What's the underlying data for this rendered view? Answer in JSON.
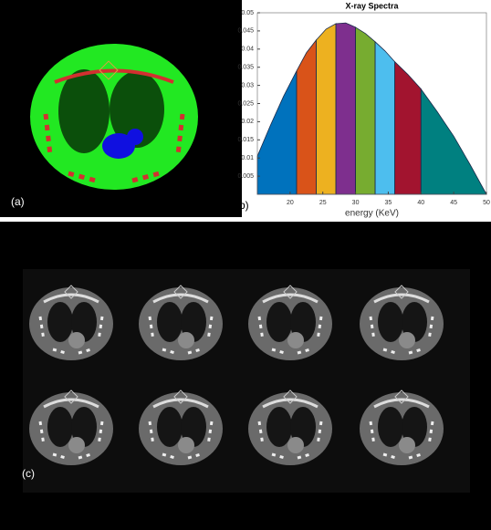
{
  "panels": {
    "a": "(a)",
    "b": "(b)",
    "c": "(c)"
  },
  "chart_data": {
    "type": "area",
    "title": "X-ray Spectra",
    "x_label": "energy (KeV)",
    "xlim": [
      15,
      50
    ],
    "xticks": [
      20,
      25,
      30,
      35,
      40,
      45,
      50
    ],
    "ylim": [
      0,
      0.05
    ],
    "yticks": [
      0.005,
      0.01,
      0.015,
      0.02,
      0.025,
      0.03,
      0.035,
      0.04,
      0.045,
      0.05
    ],
    "series": [
      {
        "color": "#0072bd",
        "x": [
          15,
          17,
          19,
          21
        ],
        "values": [
          0.0105,
          0.019,
          0.027,
          0.034
        ]
      },
      {
        "color": "#d95319",
        "x": [
          21,
          22.5,
          24
        ],
        "values": [
          0.034,
          0.039,
          0.0425
        ]
      },
      {
        "color": "#edb120",
        "x": [
          24,
          25.5,
          27
        ],
        "values": [
          0.0425,
          0.0455,
          0.047
        ]
      },
      {
        "color": "#7e2f8e",
        "x": [
          27,
          28.5,
          30
        ],
        "values": [
          0.047,
          0.0472,
          0.046
        ]
      },
      {
        "color": "#77ac30",
        "x": [
          30,
          31.5,
          33
        ],
        "values": [
          0.046,
          0.0443,
          0.042
        ]
      },
      {
        "color": "#4dbeee",
        "x": [
          33,
          34.5,
          36
        ],
        "values": [
          0.042,
          0.0395,
          0.0365
        ]
      },
      {
        "color": "#a2142f",
        "x": [
          36,
          38,
          40
        ],
        "values": [
          0.0365,
          0.033,
          0.029
        ]
      },
      {
        "color": "#008080",
        "x": [
          40,
          42.5,
          45,
          47.5,
          50
        ],
        "values": [
          0.029,
          0.0227,
          0.016,
          0.0082,
          0
        ]
      }
    ]
  }
}
